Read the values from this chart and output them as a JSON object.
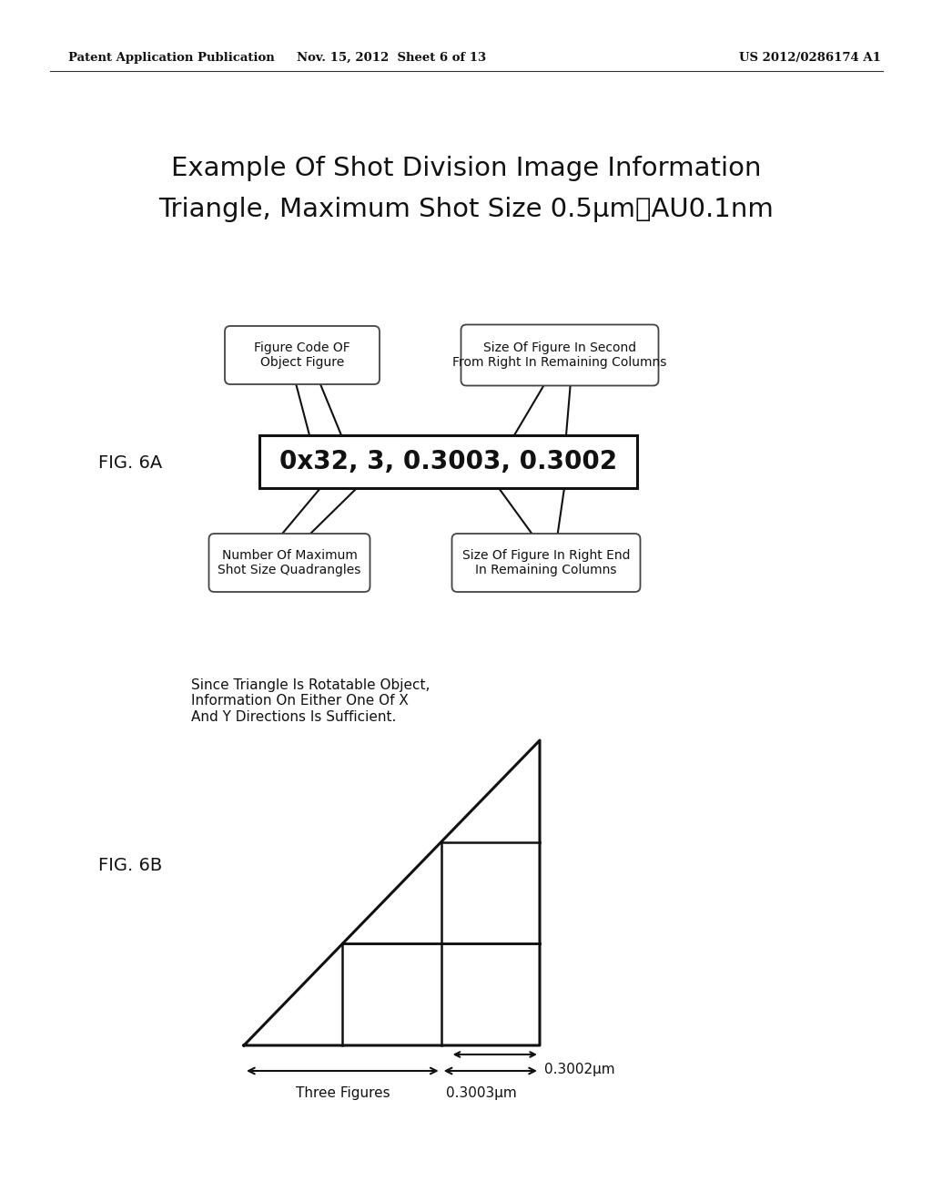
{
  "bg_color": "#ffffff",
  "header_left": "Patent Application Publication",
  "header_mid": "Nov. 15, 2012  Sheet 6 of 13",
  "header_right": "US 2012/0286174 A1",
  "title_line1": "Example Of Shot Division Image Information",
  "title_line2": "Triangle, Maximum Shot Size 0.5μm、AU0.1nm",
  "fig6a_label": "FIG. 6A",
  "fig6b_label": "FIG. 6B",
  "code_box_text": "0x32, 3, 0.3003, 0.3002",
  "top_left_bubble": "Figure Code OF\nObject Figure",
  "top_right_bubble": "Size Of Figure In Second\nFrom Right In Remaining Columns",
  "bot_left_bubble": "Number Of Maximum\nShot Size Quadrangles",
  "bot_right_bubble": "Size Of Figure In Right End\nIn Remaining Columns",
  "triangle_text": "Since Triangle Is Rotatable Object,\nInformation On Either One Of X\nAnd Y Directions Is Sufficient.",
  "arrow_0003_label": "0.3003μm",
  "arrow_0002_label": "0.3002μm",
  "three_figures_label": "Three Figures"
}
